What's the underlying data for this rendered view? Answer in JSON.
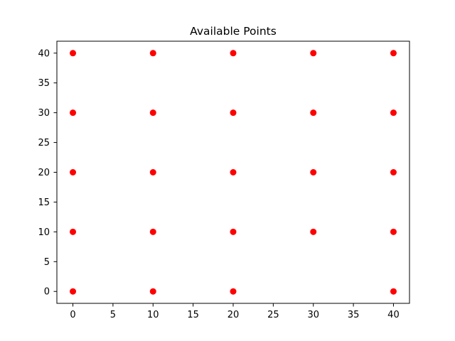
{
  "chart_data": {
    "type": "scatter",
    "title": "Available Points",
    "xlabel": "",
    "ylabel": "",
    "xlim": [
      -2,
      42
    ],
    "ylim": [
      -2,
      42
    ],
    "x_ticks": [
      "0",
      "5",
      "10",
      "15",
      "20",
      "25",
      "30",
      "35",
      "40"
    ],
    "y_ticks": [
      "0",
      "5",
      "10",
      "15",
      "20",
      "25",
      "30",
      "35",
      "40"
    ],
    "grid": false,
    "legend": "none",
    "marker_color": "#ff0000",
    "points": [
      {
        "x": 0,
        "y": 0
      },
      {
        "x": 0,
        "y": 10
      },
      {
        "x": 0,
        "y": 20
      },
      {
        "x": 0,
        "y": 30
      },
      {
        "x": 0,
        "y": 40
      },
      {
        "x": 10,
        "y": 0
      },
      {
        "x": 10,
        "y": 10
      },
      {
        "x": 10,
        "y": 20
      },
      {
        "x": 10,
        "y": 30
      },
      {
        "x": 10,
        "y": 40
      },
      {
        "x": 20,
        "y": 0
      },
      {
        "x": 20,
        "y": 10
      },
      {
        "x": 20,
        "y": 20
      },
      {
        "x": 20,
        "y": 30
      },
      {
        "x": 20,
        "y": 40
      },
      {
        "x": 30,
        "y": 10
      },
      {
        "x": 30,
        "y": 20
      },
      {
        "x": 30,
        "y": 30
      },
      {
        "x": 30,
        "y": 40
      },
      {
        "x": 40,
        "y": 0
      },
      {
        "x": 40,
        "y": 10
      },
      {
        "x": 40,
        "y": 20
      },
      {
        "x": 40,
        "y": 30
      },
      {
        "x": 40,
        "y": 40
      }
    ]
  }
}
